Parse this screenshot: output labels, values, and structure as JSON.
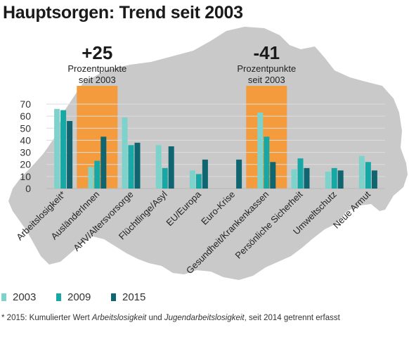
{
  "title": "Hauptsorgen: Trend seit 2003",
  "colors": {
    "s2003": "#7dd3cb",
    "s2009": "#17a8a5",
    "s2015": "#0f6670",
    "highlight": "#f39b3d",
    "map": "#c9c9c9",
    "grid": "#dcdcdc"
  },
  "chart_data": {
    "type": "bar",
    "categories": [
      "Arbeitslosigkeit*",
      "AusländerInnen",
      "AHV/Altersvorsorge",
      "Flüchtlinge/Asyl",
      "EU/Europa",
      "Euro-Krise",
      "Gesundheit/Krankenkassen",
      "Persönliche Sicherheit",
      "Umweltschutz",
      "Neue Armut"
    ],
    "series": [
      {
        "name": "2003",
        "values": [
          66,
          18,
          59,
          36,
          15,
          null,
          63,
          16,
          14,
          27
        ]
      },
      {
        "name": "2009",
        "values": [
          65,
          23,
          36,
          17,
          12,
          null,
          43,
          25,
          17,
          22
        ]
      },
      {
        "name": "2015",
        "values": [
          56,
          43,
          38,
          35,
          24,
          24,
          22,
          17,
          15,
          15
        ]
      }
    ],
    "ylim": [
      0,
      70
    ],
    "yticks": [
      "0",
      "10",
      "20",
      "30",
      "40",
      "50",
      "60",
      "70"
    ],
    "grid": true,
    "legend_position": "bottom-left",
    "annotations": [
      {
        "category_index": 1,
        "value": "+25",
        "line1": "Prozentpunkte",
        "line2": "seit 2003"
      },
      {
        "category_index": 6,
        "value": "-41",
        "line1": "Prozentpunkte",
        "line2": "seit 2003"
      }
    ]
  },
  "footnote": {
    "prefix": "* 2015: Kumulierter Wert ",
    "term1": "Arbeitslosigkeit",
    "mid": " und ",
    "term2": "Jugendarbeitslosigkeit",
    "suffix": ", seit 2014 getrennt erfasst"
  }
}
